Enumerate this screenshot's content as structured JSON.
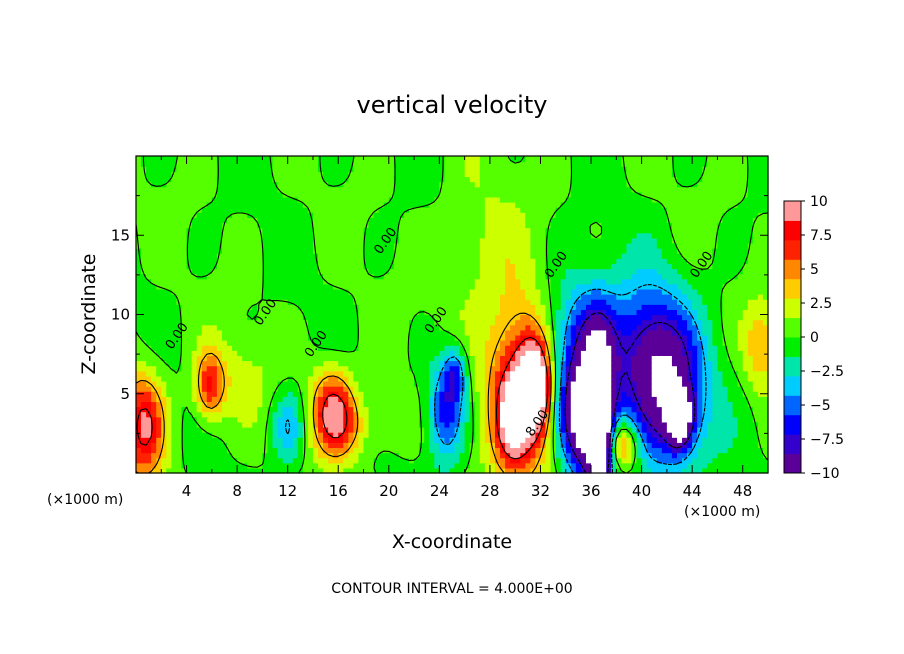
{
  "chart_data": {
    "type": "heatmap",
    "title": "vertical velocity",
    "xlabel": "X-coordinate",
    "ylabel": "Z-coordinate",
    "x_unit": "(×1000 m)",
    "x_unit_right": "(×1000 m)",
    "xlim": [
      0,
      50
    ],
    "ylim": [
      0,
      20
    ],
    "xticks": [
      4,
      8,
      12,
      16,
      20,
      24,
      28,
      32,
      36,
      40,
      44,
      48
    ],
    "yticks": [
      5,
      10,
      15
    ],
    "footer": "CONTOUR INTERVAL = 4.000E+00",
    "colorbar": {
      "ticks": [
        "10",
        "7.5",
        "5",
        "2.5",
        "0",
        "−2.5",
        "−5",
        "−7.5",
        "−10"
      ],
      "range": [
        -10,
        10
      ],
      "colors": [
        "#5a0099",
        "#3300cc",
        "#0000ff",
        "#0066ff",
        "#00ccff",
        "#00e6aa",
        "#00ee00",
        "#55ff00",
        "#ccff00",
        "#ffcc00",
        "#ff8800",
        "#ff2200",
        "#ff0000",
        "#ff9999"
      ]
    },
    "contour_labels": [
      {
        "text": "0.00",
        "x": 3.5,
        "y": 8.5
      },
      {
        "text": "0.00",
        "x": 10.5,
        "y": 10.0
      },
      {
        "text": "0.00",
        "x": 14.5,
        "y": 8.0
      },
      {
        "text": "0.00",
        "x": 20.0,
        "y": 14.5
      },
      {
        "text": "0.00",
        "x": 24.0,
        "y": 9.5
      },
      {
        "text": "0.00",
        "x": 33.5,
        "y": 13.0
      },
      {
        "text": "8.00",
        "x": 32.0,
        "y": 3.0
      },
      {
        "text": "0.00",
        "x": 45.0,
        "y": 13.0
      }
    ],
    "features": [
      {
        "x": 30.5,
        "z": 5.0,
        "value": 10,
        "sx": 1.8,
        "sz": 3.8
      },
      {
        "x": 31.5,
        "z": 5.5,
        "value": 14,
        "sx": 0.8,
        "sz": 1.8
      },
      {
        "x": 29.8,
        "z": 3.5,
        "value": 8,
        "sx": 0.8,
        "sz": 1.6
      },
      {
        "x": 35.0,
        "z": 3.5,
        "value": -10,
        "sx": 1.1,
        "sz": 2.2
      },
      {
        "x": 36.5,
        "z": 3.5,
        "value": -11,
        "sx": 1.0,
        "sz": 3.5
      },
      {
        "x": 36.7,
        "z": 3.2,
        "value": -14,
        "sx": 0.5,
        "sz": 2.6
      },
      {
        "x": 35.5,
        "z": 8.0,
        "value": -7,
        "sx": 2.2,
        "sz": 3.0
      },
      {
        "x": 42.0,
        "z": 5.0,
        "value": -9,
        "sx": 2.2,
        "sz": 3.5
      },
      {
        "x": 43.0,
        "z": 3.5,
        "value": -12,
        "sx": 0.7,
        "sz": 1.2
      },
      {
        "x": 40.5,
        "z": 8.0,
        "value": -5,
        "sx": 2.0,
        "sz": 3.0
      },
      {
        "x": 38.5,
        "z": 1.8,
        "value": 7,
        "sx": 0.9,
        "sz": 1.1
      },
      {
        "x": 24.5,
        "z": 4.0,
        "value": -7,
        "sx": 1.0,
        "sz": 2.2
      },
      {
        "x": 25.3,
        "z": 6.3,
        "value": -5,
        "sx": 0.6,
        "sz": 1.2
      },
      {
        "x": 15.5,
        "z": 4.0,
        "value": 8,
        "sx": 1.2,
        "sz": 1.9
      },
      {
        "x": 16.5,
        "z": 3.0,
        "value": 3,
        "sx": 1.2,
        "sz": 1.5
      },
      {
        "x": 12.0,
        "z": 3.0,
        "value": -4,
        "sx": 0.9,
        "sz": 1.6
      },
      {
        "x": 0.6,
        "z": 3.0,
        "value": 8.5,
        "sx": 1.2,
        "sz": 2.4
      },
      {
        "x": 5.8,
        "z": 5.5,
        "value": 6.5,
        "sx": 0.8,
        "sz": 1.5
      },
      {
        "x": 49.5,
        "z": 8.0,
        "value": 4,
        "sx": 1.0,
        "sz": 2.0
      },
      {
        "x": 27.5,
        "z": 13.5,
        "value": 2,
        "sx": 2.5,
        "sz": 4.0
      },
      {
        "x": 8.0,
        "z": 6.0,
        "value": 2,
        "sx": 2.0,
        "sz": 2.0
      },
      {
        "x": 19.5,
        "z": 3.0,
        "value": 1.5,
        "sx": 1.5,
        "sz": 1.5
      }
    ]
  }
}
